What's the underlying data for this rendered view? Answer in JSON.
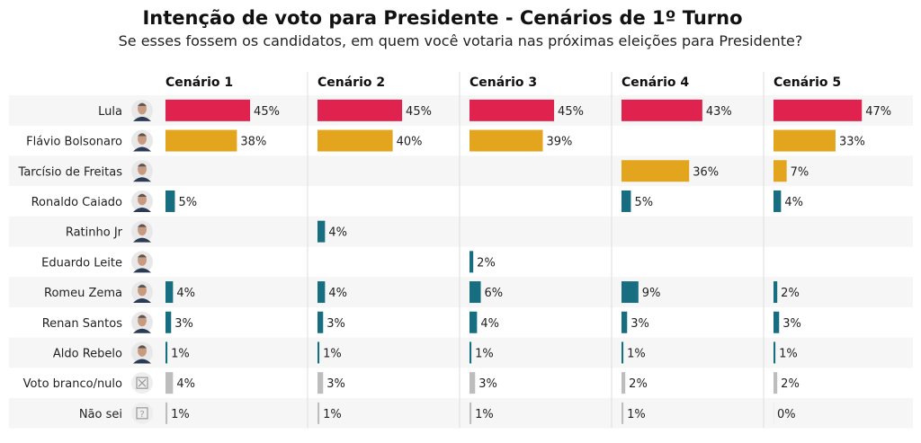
{
  "chart_data": {
    "type": "bar",
    "title": "Intenção de voto para Presidente - Cenários de 1º Turno",
    "subtitle": "Se esses fossem os candidatos, em quem você votaria nas próximas eleições para Presidente?",
    "categories": [
      "Lula",
      "Flávio Bolsonaro",
      "Tarcísio de Freitas",
      "Ronaldo Caiado",
      "Ratinho Jr",
      "Eduardo Leite",
      "Romeu Zema",
      "Renan Santos",
      "Aldo Rebelo",
      "Voto branco/nulo",
      "Não sei"
    ],
    "category_icons": [
      "photo",
      "photo",
      "photo",
      "photo",
      "photo",
      "photo",
      "photo",
      "photo",
      "photo",
      "x-box-icon",
      "question-box-icon"
    ],
    "bar_colors": [
      "#e0234e",
      "#e3a51e",
      "#e3a51e",
      "#176e80",
      "#176e80",
      "#176e80",
      "#176e80",
      "#176e80",
      "#176e80",
      "#bdbdbd",
      "#bdbdbd"
    ],
    "unit": "%",
    "series": [
      {
        "name": "Cenário 1",
        "values": [
          45,
          38,
          null,
          5,
          null,
          null,
          4,
          3,
          1,
          4,
          1
        ]
      },
      {
        "name": "Cenário 2",
        "values": [
          45,
          40,
          null,
          null,
          4,
          null,
          4,
          3,
          1,
          3,
          1
        ]
      },
      {
        "name": "Cenário 3",
        "values": [
          45,
          39,
          null,
          null,
          null,
          2,
          6,
          4,
          1,
          3,
          1
        ]
      },
      {
        "name": "Cenário 4",
        "values": [
          43,
          null,
          36,
          5,
          null,
          null,
          9,
          3,
          1,
          2,
          1
        ]
      },
      {
        "name": "Cenário 5",
        "values": [
          47,
          33,
          7,
          4,
          null,
          null,
          2,
          3,
          1,
          2,
          0
        ]
      }
    ],
    "grid": false,
    "legend": "none"
  }
}
